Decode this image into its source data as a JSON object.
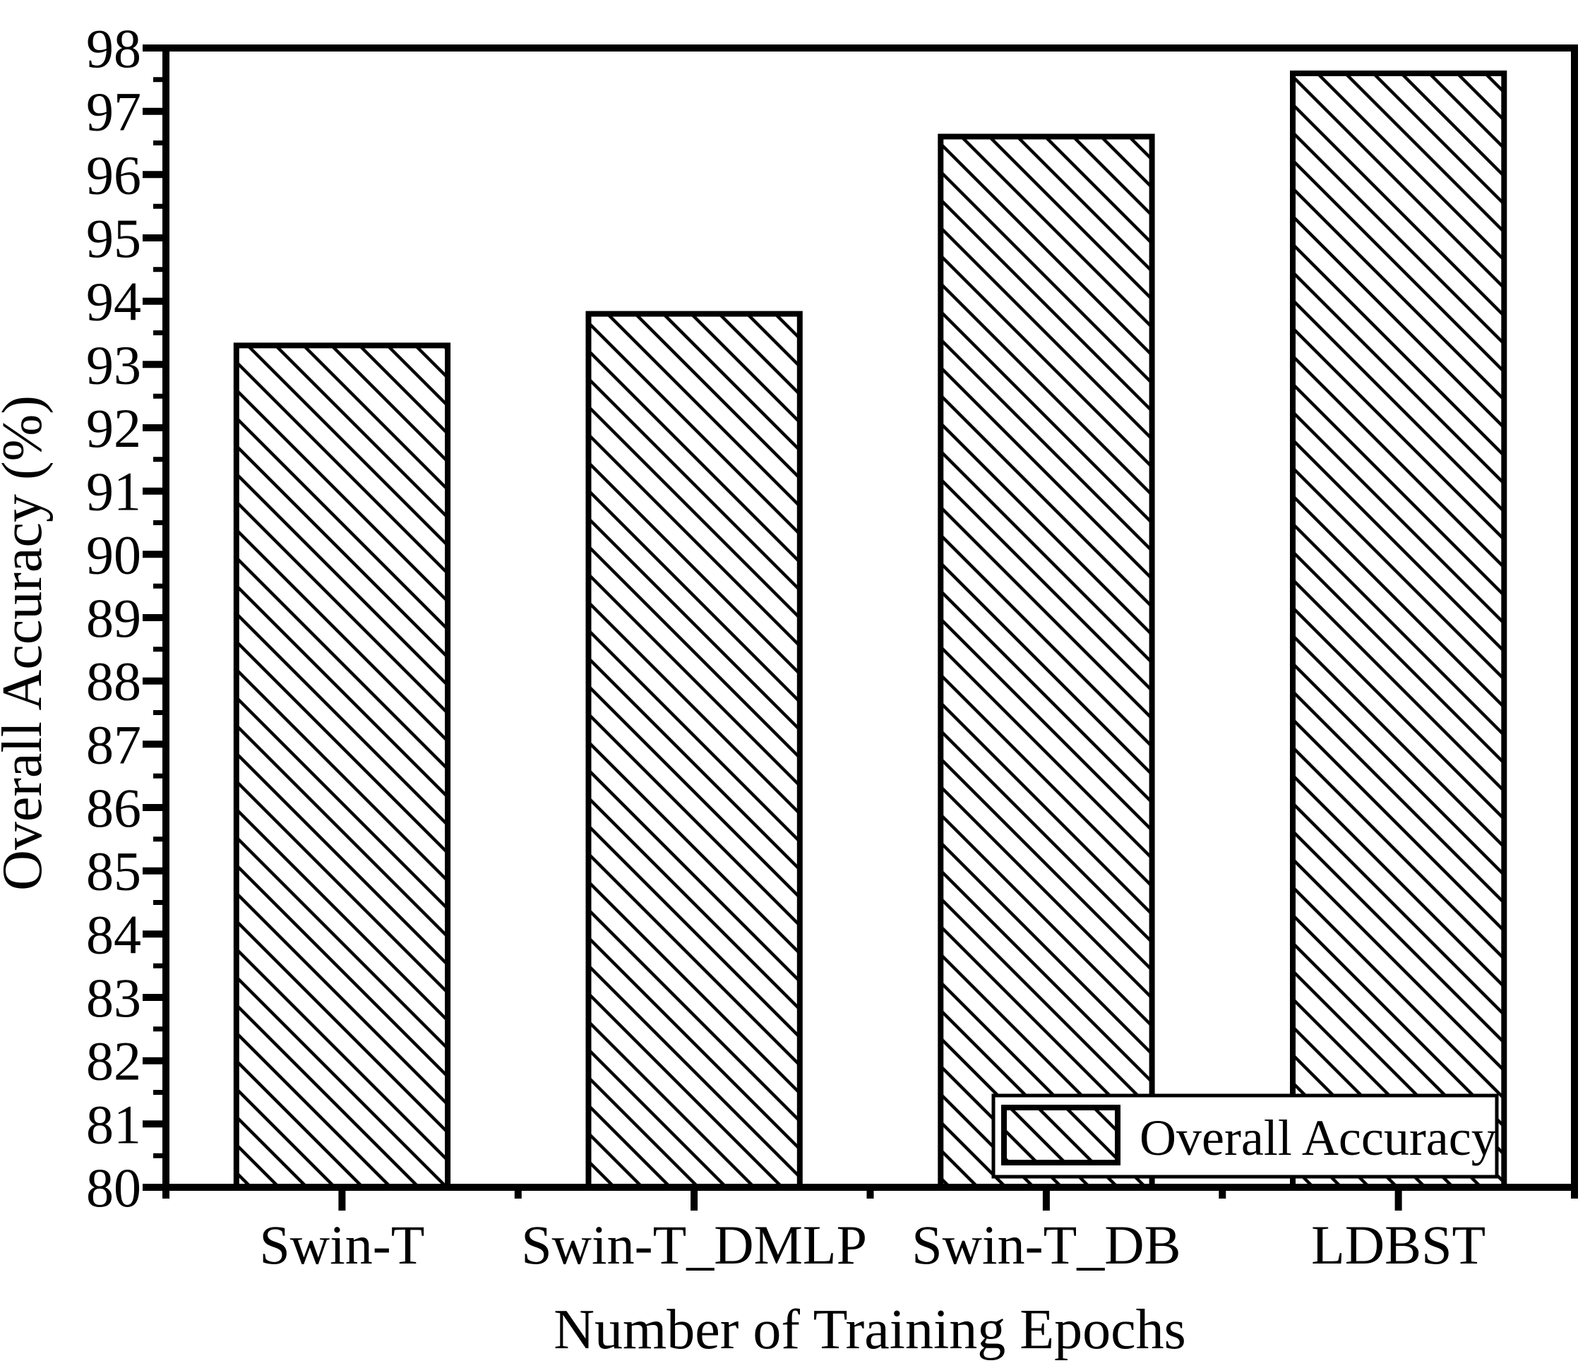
{
  "figure": {
    "background": "#ffffff",
    "ink": "#000000"
  },
  "chart_data": {
    "type": "bar",
    "title": "",
    "xlabel": "Number of Training Epochs",
    "ylabel": "Overall Accuracy (%)",
    "categories": [
      "Swin-T",
      "Swin-T_DMLP",
      "Swin-T_DB",
      "LDBST"
    ],
    "series": [
      {
        "name": "Overall Accuracy",
        "values": [
          93.3,
          93.8,
          96.6,
          97.6
        ]
      }
    ],
    "ylim": [
      80,
      98
    ],
    "yticks": [
      80,
      81,
      82,
      83,
      84,
      85,
      86,
      87,
      88,
      89,
      90,
      91,
      92,
      93,
      94,
      95,
      96,
      97,
      98
    ],
    "ytick_minor_step": 0.5,
    "grid": false,
    "bar_style": {
      "fill_pattern": "diagonal-backslash-hatch",
      "pattern_color": "#000000",
      "background": "#ffffff",
      "outline": "#000000"
    },
    "legend": {
      "label": "Overall Accuracy",
      "position": "lower-right",
      "swatch": "diagonal-backslash-hatch"
    }
  }
}
